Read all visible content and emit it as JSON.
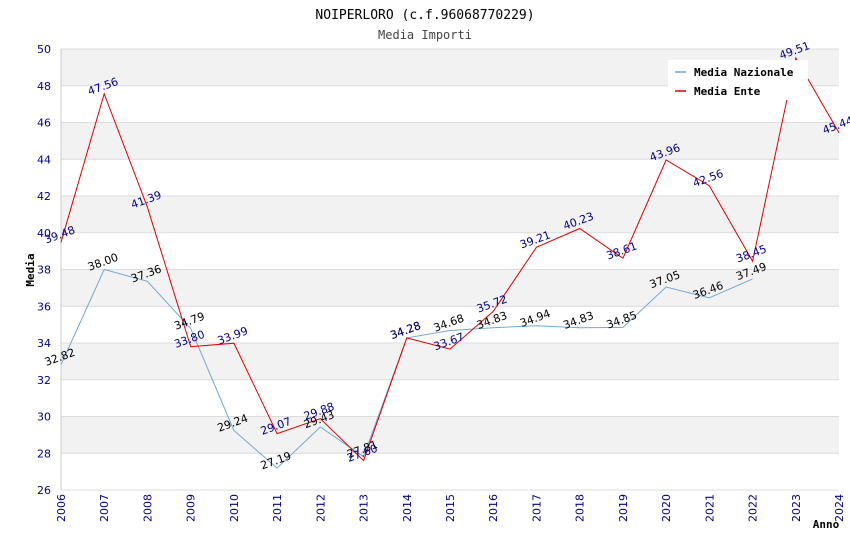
{
  "chart_data": {
    "type": "line",
    "title": "NOIPERLORO (c.f.96068770229)",
    "subtitle": "Media Importi",
    "xlabel": "Anno",
    "ylabel": "Media",
    "ylim": [
      26,
      50
    ],
    "yticks": [
      26,
      28,
      30,
      32,
      34,
      36,
      38,
      40,
      42,
      44,
      46,
      48,
      50
    ],
    "x": [
      2006,
      2007,
      2008,
      2009,
      2010,
      2011,
      2012,
      2013,
      2014,
      2015,
      2016,
      2017,
      2018,
      2019,
      2020,
      2021,
      2022,
      2023,
      2024
    ],
    "grid": true,
    "legend_position": "top-right",
    "series": [
      {
        "name": "Media Nazionale",
        "color": "#6fa8dc",
        "label_color": "#000000",
        "values": [
          32.82,
          38.0,
          37.36,
          34.79,
          29.24,
          27.19,
          29.43,
          27.81,
          34.28,
          34.68,
          34.83,
          34.94,
          34.83,
          34.85,
          37.05,
          36.46,
          37.49,
          null,
          null
        ],
        "labels": [
          "32.82",
          "38.00",
          "37.36",
          "34.79",
          "29.24",
          "27.19",
          "29.43",
          "27.81",
          "34.28",
          "34.68",
          "34.83",
          "34.94",
          "34.83",
          "34.85",
          "37.05",
          "36.46",
          "37.49",
          null,
          null
        ]
      },
      {
        "name": "Media Ente",
        "color": "#e00000",
        "label_color": "#00008b",
        "values": [
          39.48,
          47.56,
          41.39,
          33.8,
          33.99,
          29.07,
          29.88,
          27.6,
          34.28,
          33.67,
          35.72,
          39.21,
          40.23,
          38.61,
          43.96,
          42.56,
          38.45,
          49.51,
          45.44
        ],
        "labels": [
          "39.48",
          "47.56",
          "41.39",
          "33.80",
          "33.99",
          "29.07",
          "29.88",
          "27.60",
          "34.28",
          "33.67",
          "35.72",
          "39.21",
          "40.23",
          "38.61",
          "43.96",
          "42.56",
          "38.45",
          "49.51",
          "45.44"
        ]
      }
    ]
  }
}
